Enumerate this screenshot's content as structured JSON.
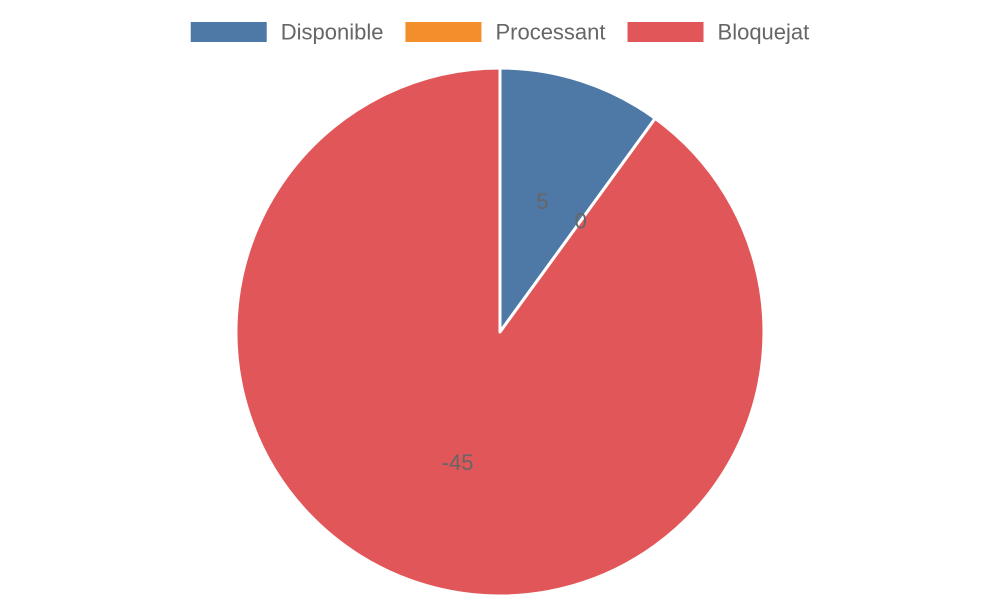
{
  "chart_data": {
    "type": "pie",
    "title": "",
    "legend_position": "top",
    "categories": [
      "Disponible",
      "Processant",
      "Bloquejat"
    ],
    "values": [
      5,
      0,
      -45
    ],
    "colors": [
      "#4e79a7",
      "#f28e2b",
      "#e15759"
    ],
    "data_labels": [
      "5",
      "0",
      "-45"
    ],
    "label_color": "#666666",
    "slice_border_color": "#ffffff"
  }
}
